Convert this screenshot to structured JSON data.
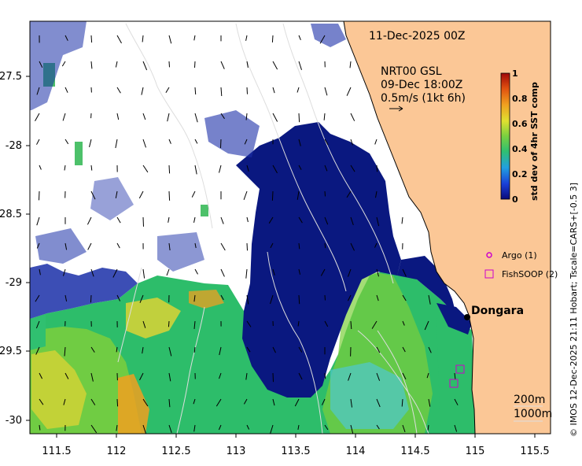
{
  "plot": {
    "date_label": "11-Dec-2025 00Z",
    "current_source": "NRT00 GSL",
    "current_time": "09-Dec 18:00Z",
    "current_scale": "0.5m/s (1kt 6h)",
    "side_credit": "© IMOS 12-Dec-2025 21:11 Hobart; Tscale=CARS+[-0.5 3]",
    "town_label": "Dongara",
    "depth_contour_1": "200m",
    "depth_contour_2": "1000m",
    "legend": [
      {
        "label": "Argo (1)",
        "marker": "circle",
        "color": "#cc00cc"
      },
      {
        "label": "FishSOOP (2)",
        "marker": "square",
        "color": "#cc00cc"
      }
    ]
  },
  "colorbar": {
    "title": "std dev of 4hr SST comp",
    "ticks": [
      "0",
      "0.2",
      "0.4",
      "0.6",
      "0.8",
      "1"
    ],
    "colors": [
      "#0a0a7a",
      "#1a3fd8",
      "#22a0e0",
      "#30c070",
      "#7ad040",
      "#e0e030",
      "#f0a020",
      "#e05010",
      "#a00808"
    ]
  },
  "axes": {
    "x_ticks": [
      "111.5",
      "112",
      "112.5",
      "113",
      "113.5",
      "114",
      "114.5",
      "115",
      "115.5"
    ],
    "y_ticks": [
      "-27.5",
      "-28",
      "-28.5",
      "-29",
      "-29.5",
      "-30"
    ]
  },
  "colors": {
    "land": "#fbc796",
    "no_data": "#ffffff",
    "coast": "#000000"
  }
}
